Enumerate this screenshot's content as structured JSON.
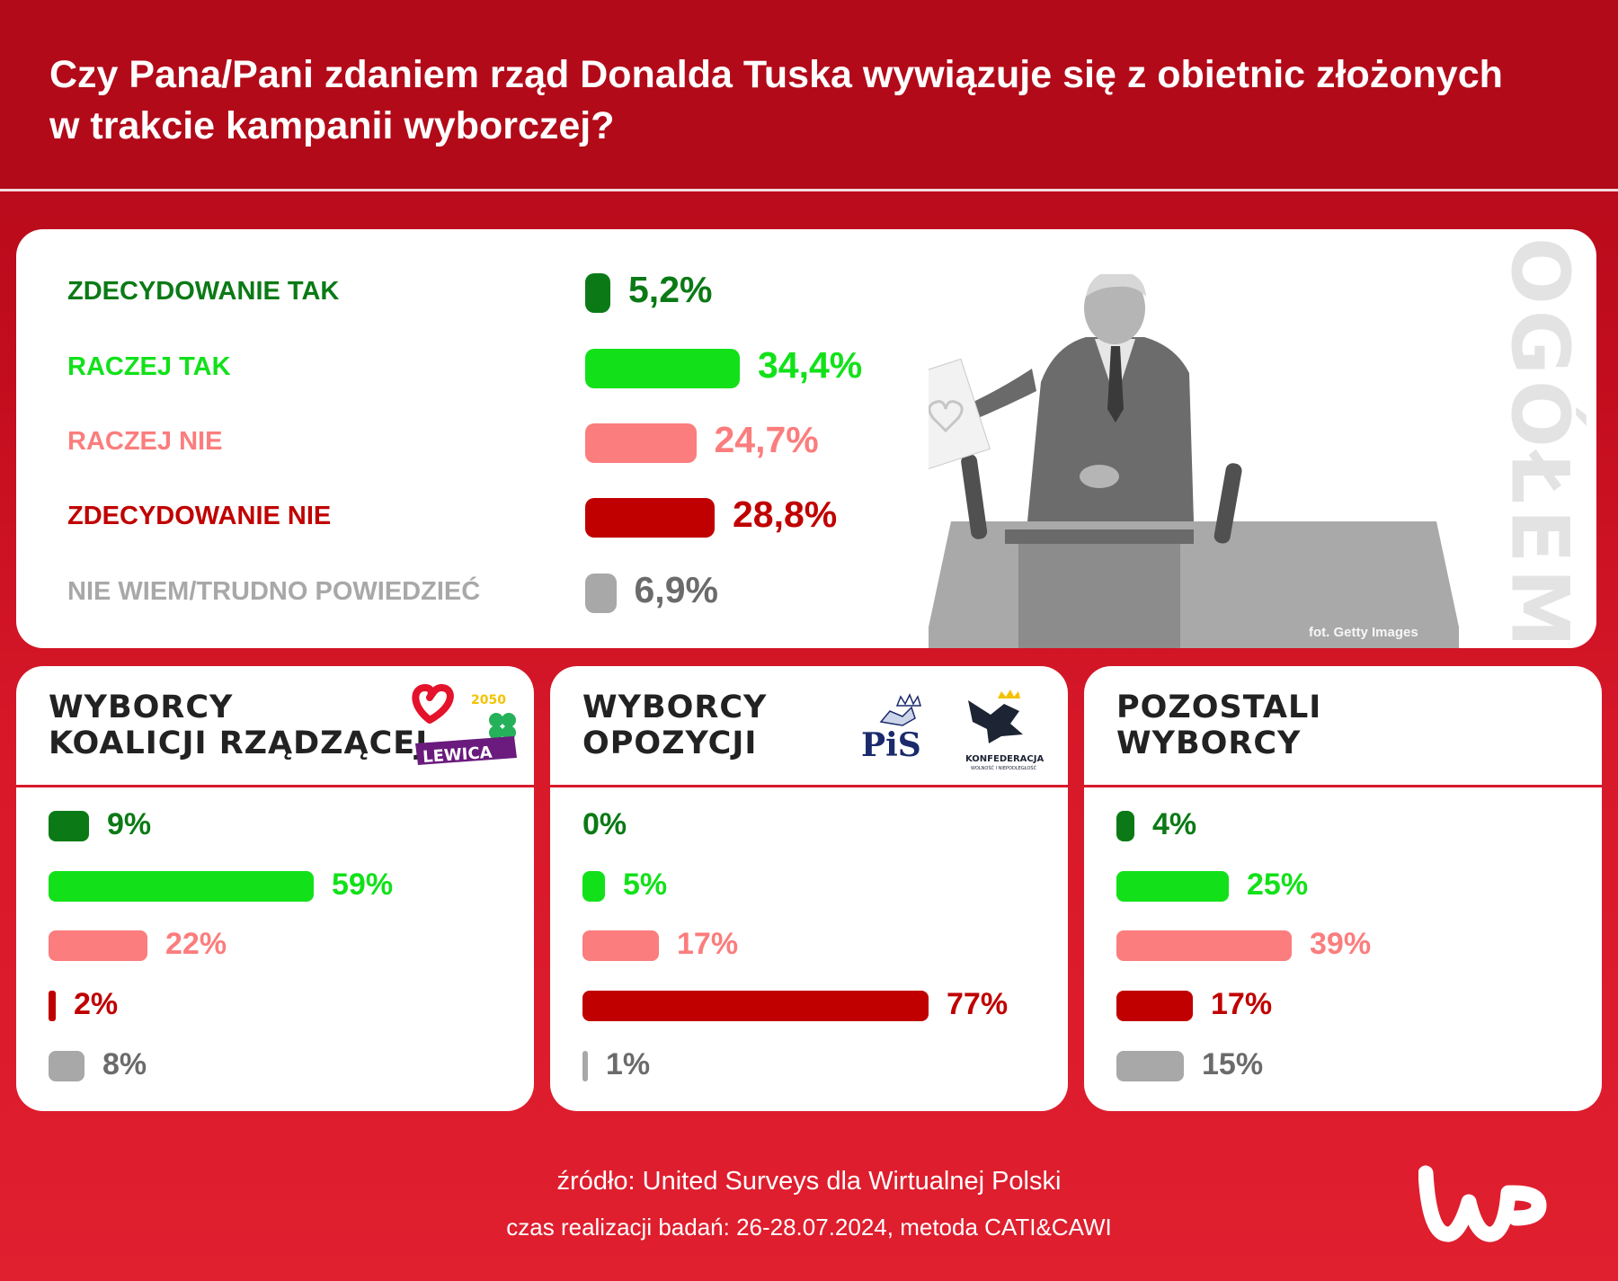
{
  "header": {
    "title_line1": "Czy Pana/Pani zdaniem rząd Donalda Tuska wywiązuje się z obietnic złożonych",
    "title_line2": "w trakcie kampanii wyborczej?"
  },
  "photo": {
    "credit": "fot. Getty Images",
    "side_label": "OGÓŁEM"
  },
  "colors": {
    "zdecydowanie_tak": "#0b7a16",
    "raczej_tak": "#12e11a",
    "raczej_nie": "#fb7d7d",
    "zdecydowanie_nie": "#c00000",
    "nie_wiem": "#a8a8a8"
  },
  "chart_data": [
    {
      "type": "bar",
      "group": "OGÓŁEM",
      "categories": [
        "ZDECYDOWANIE TAK",
        "RACZEJ TAK",
        "RACZEJ NIE",
        "ZDECYDOWANIE NIE",
        "NIE WIEM/TRUDNO POWIEDZIEĆ"
      ],
      "values": [
        5.2,
        34.4,
        24.7,
        28.8,
        6.9
      ],
      "labels": [
        "5,2%",
        "34,4%",
        "24,7%",
        "28,8%",
        "6,9%"
      ]
    },
    {
      "type": "bar",
      "group": "WYBORCY KOALICJI RZĄDZĄCEJ",
      "title_lines": [
        "WYBORCY",
        "KOALICJI RZĄDZĄCEJ"
      ],
      "categories": [
        "ZDECYDOWANIE TAK",
        "RACZEJ TAK",
        "RACZEJ NIE",
        "ZDECYDOWANIE NIE",
        "NIE WIEM/TRUDNO POWIEDZIEĆ"
      ],
      "values": [
        9,
        59,
        22,
        2,
        8
      ],
      "labels": [
        "9%",
        "59%",
        "22%",
        "2%",
        "8%"
      ]
    },
    {
      "type": "bar",
      "group": "WYBORCY OPOZYCJI",
      "title_lines": [
        "WYBORCY",
        "OPOZYCJI"
      ],
      "categories": [
        "ZDECYDOWANIE TAK",
        "RACZEJ TAK",
        "RACZEJ NIE",
        "ZDECYDOWANIE NIE",
        "NIE WIEM/TRUDNO POWIEDZIEĆ"
      ],
      "values": [
        0,
        5,
        17,
        77,
        1
      ],
      "labels": [
        "0%",
        "5%",
        "17%",
        "77%",
        "1%"
      ]
    },
    {
      "type": "bar",
      "group": "POZOSTALI WYBORCY",
      "title_lines": [
        "POZOSTALI",
        "WYBORCY"
      ],
      "categories": [
        "ZDECYDOWANIE TAK",
        "RACZEJ TAK",
        "RACZEJ NIE",
        "ZDECYDOWANIE NIE",
        "NIE WIEM/TRUDNO POWIEDZIEĆ"
      ],
      "values": [
        4,
        25,
        39,
        17,
        15
      ],
      "labels": [
        "4%",
        "25%",
        "39%",
        "17%",
        "15%"
      ]
    }
  ],
  "logos": {
    "koalicja": {
      "lewica": "LEWICA",
      "trzecia_droga": "2050"
    },
    "opozycja": {
      "pis": "PiS",
      "konfederacja": "KONFEDERACJA",
      "konfederacja_sub": "WOLNOŚĆ I NIEPODLEGŁOŚĆ"
    }
  },
  "footer": {
    "source": "źródło: United Surveys dla Wirtualnej Polski",
    "period": "czas realizacji badań: 26-28.07.2024, metoda CATI&CAWI",
    "brand": "WP"
  }
}
